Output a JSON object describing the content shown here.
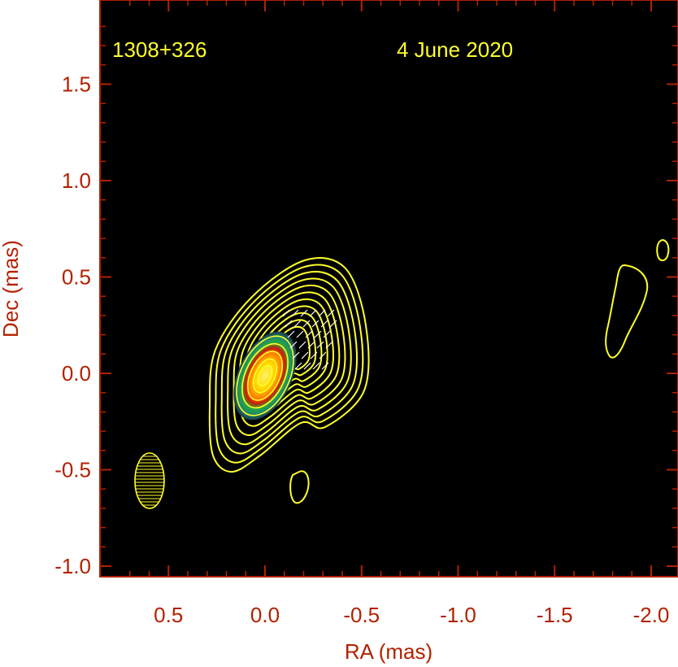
{
  "chart_data": {
    "type": "contour",
    "source_name": "1308+326",
    "date": "4 June 2020",
    "xlabel": "RA (mas)",
    "ylabel": "Dec (mas)",
    "xlim": [
      0.8,
      -2.1
    ],
    "ylim": [
      -1.1,
      1.9
    ],
    "x_ticks": [
      "0.5",
      "0.0",
      "-0.5",
      "-1.0",
      "-1.5",
      "-2.0"
    ],
    "x_tick_values": [
      0.5,
      0.0,
      -0.5,
      -1.0,
      -1.5,
      -2.0
    ],
    "y_ticks": [
      "1.5",
      "1.0",
      "0.5",
      "0.0",
      "-0.5",
      "-1.0"
    ],
    "y_tick_values": [
      1.5,
      1.0,
      0.5,
      0.0,
      -0.5,
      -1.0
    ],
    "core_position": [
      0.0,
      0.0
    ],
    "beam": {
      "center": [
        0.4,
        -0.56
      ],
      "major_mas": 0.29,
      "minor_mas": 0.15,
      "pa_deg": 0
    },
    "colors": {
      "frame": "#b22200",
      "background": "#000000",
      "contour": "#ffff2a",
      "label": "#ffff2a"
    }
  }
}
